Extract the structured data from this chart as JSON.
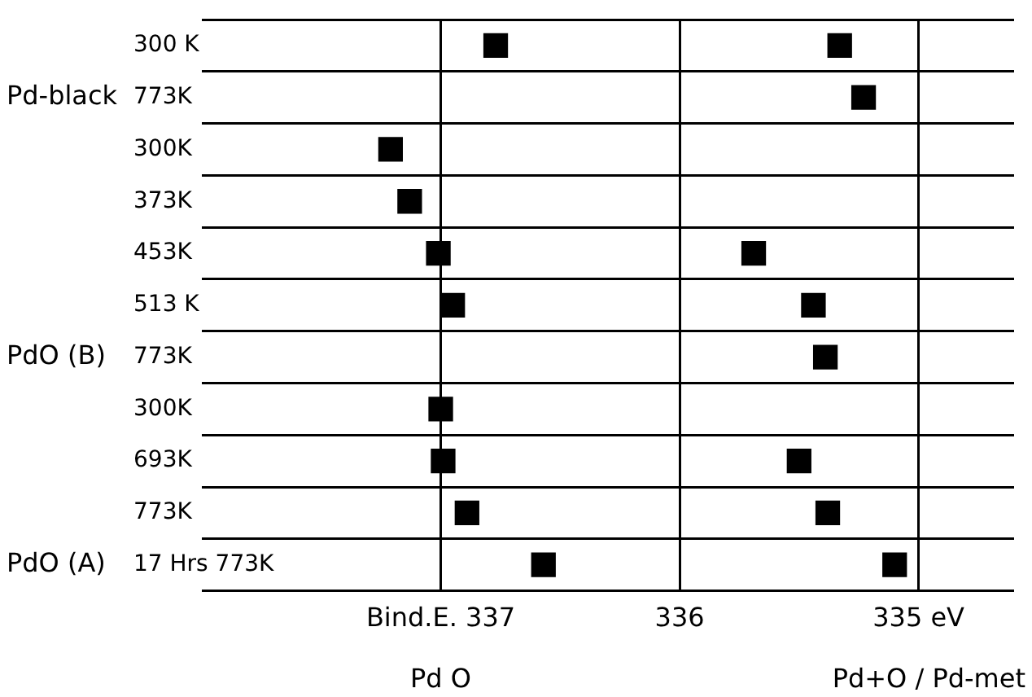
{
  "chart_data": {
    "type": "scatter",
    "categories": [
      "300 K",
      "773K",
      "300K",
      "373K",
      "453K",
      "513 K",
      "773K",
      "300K",
      "693K",
      "773K",
      "17 Hrs 773K"
    ],
    "series": [
      {
        "color": "#000000",
        "values": [
          336.77,
          null,
          337.21,
          337.13,
          337.01,
          336.95,
          null,
          337.0,
          336.99,
          336.89,
          336.57
        ]
      },
      {
        "color": "#000000",
        "values": [
          335.33,
          335.23,
          null,
          null,
          335.69,
          335.44,
          335.39,
          null,
          335.5,
          335.38,
          335.1
        ]
      }
    ],
    "orientation": "horizontal",
    "xlim": [
      338,
      334.6
    ],
    "xticks": [
      {
        "value": 337,
        "label": "Bind.E. 337"
      },
      336,
      {
        "value": 335,
        "label": "335 eV"
      }
    ],
    "annotations": [
      "Pd-black",
      "PdO (B)",
      "PdO (A)",
      "Pd O",
      "Pd+O / Pd-met"
    ],
    "marker": "square",
    "grid": true,
    "legend": false
  }
}
